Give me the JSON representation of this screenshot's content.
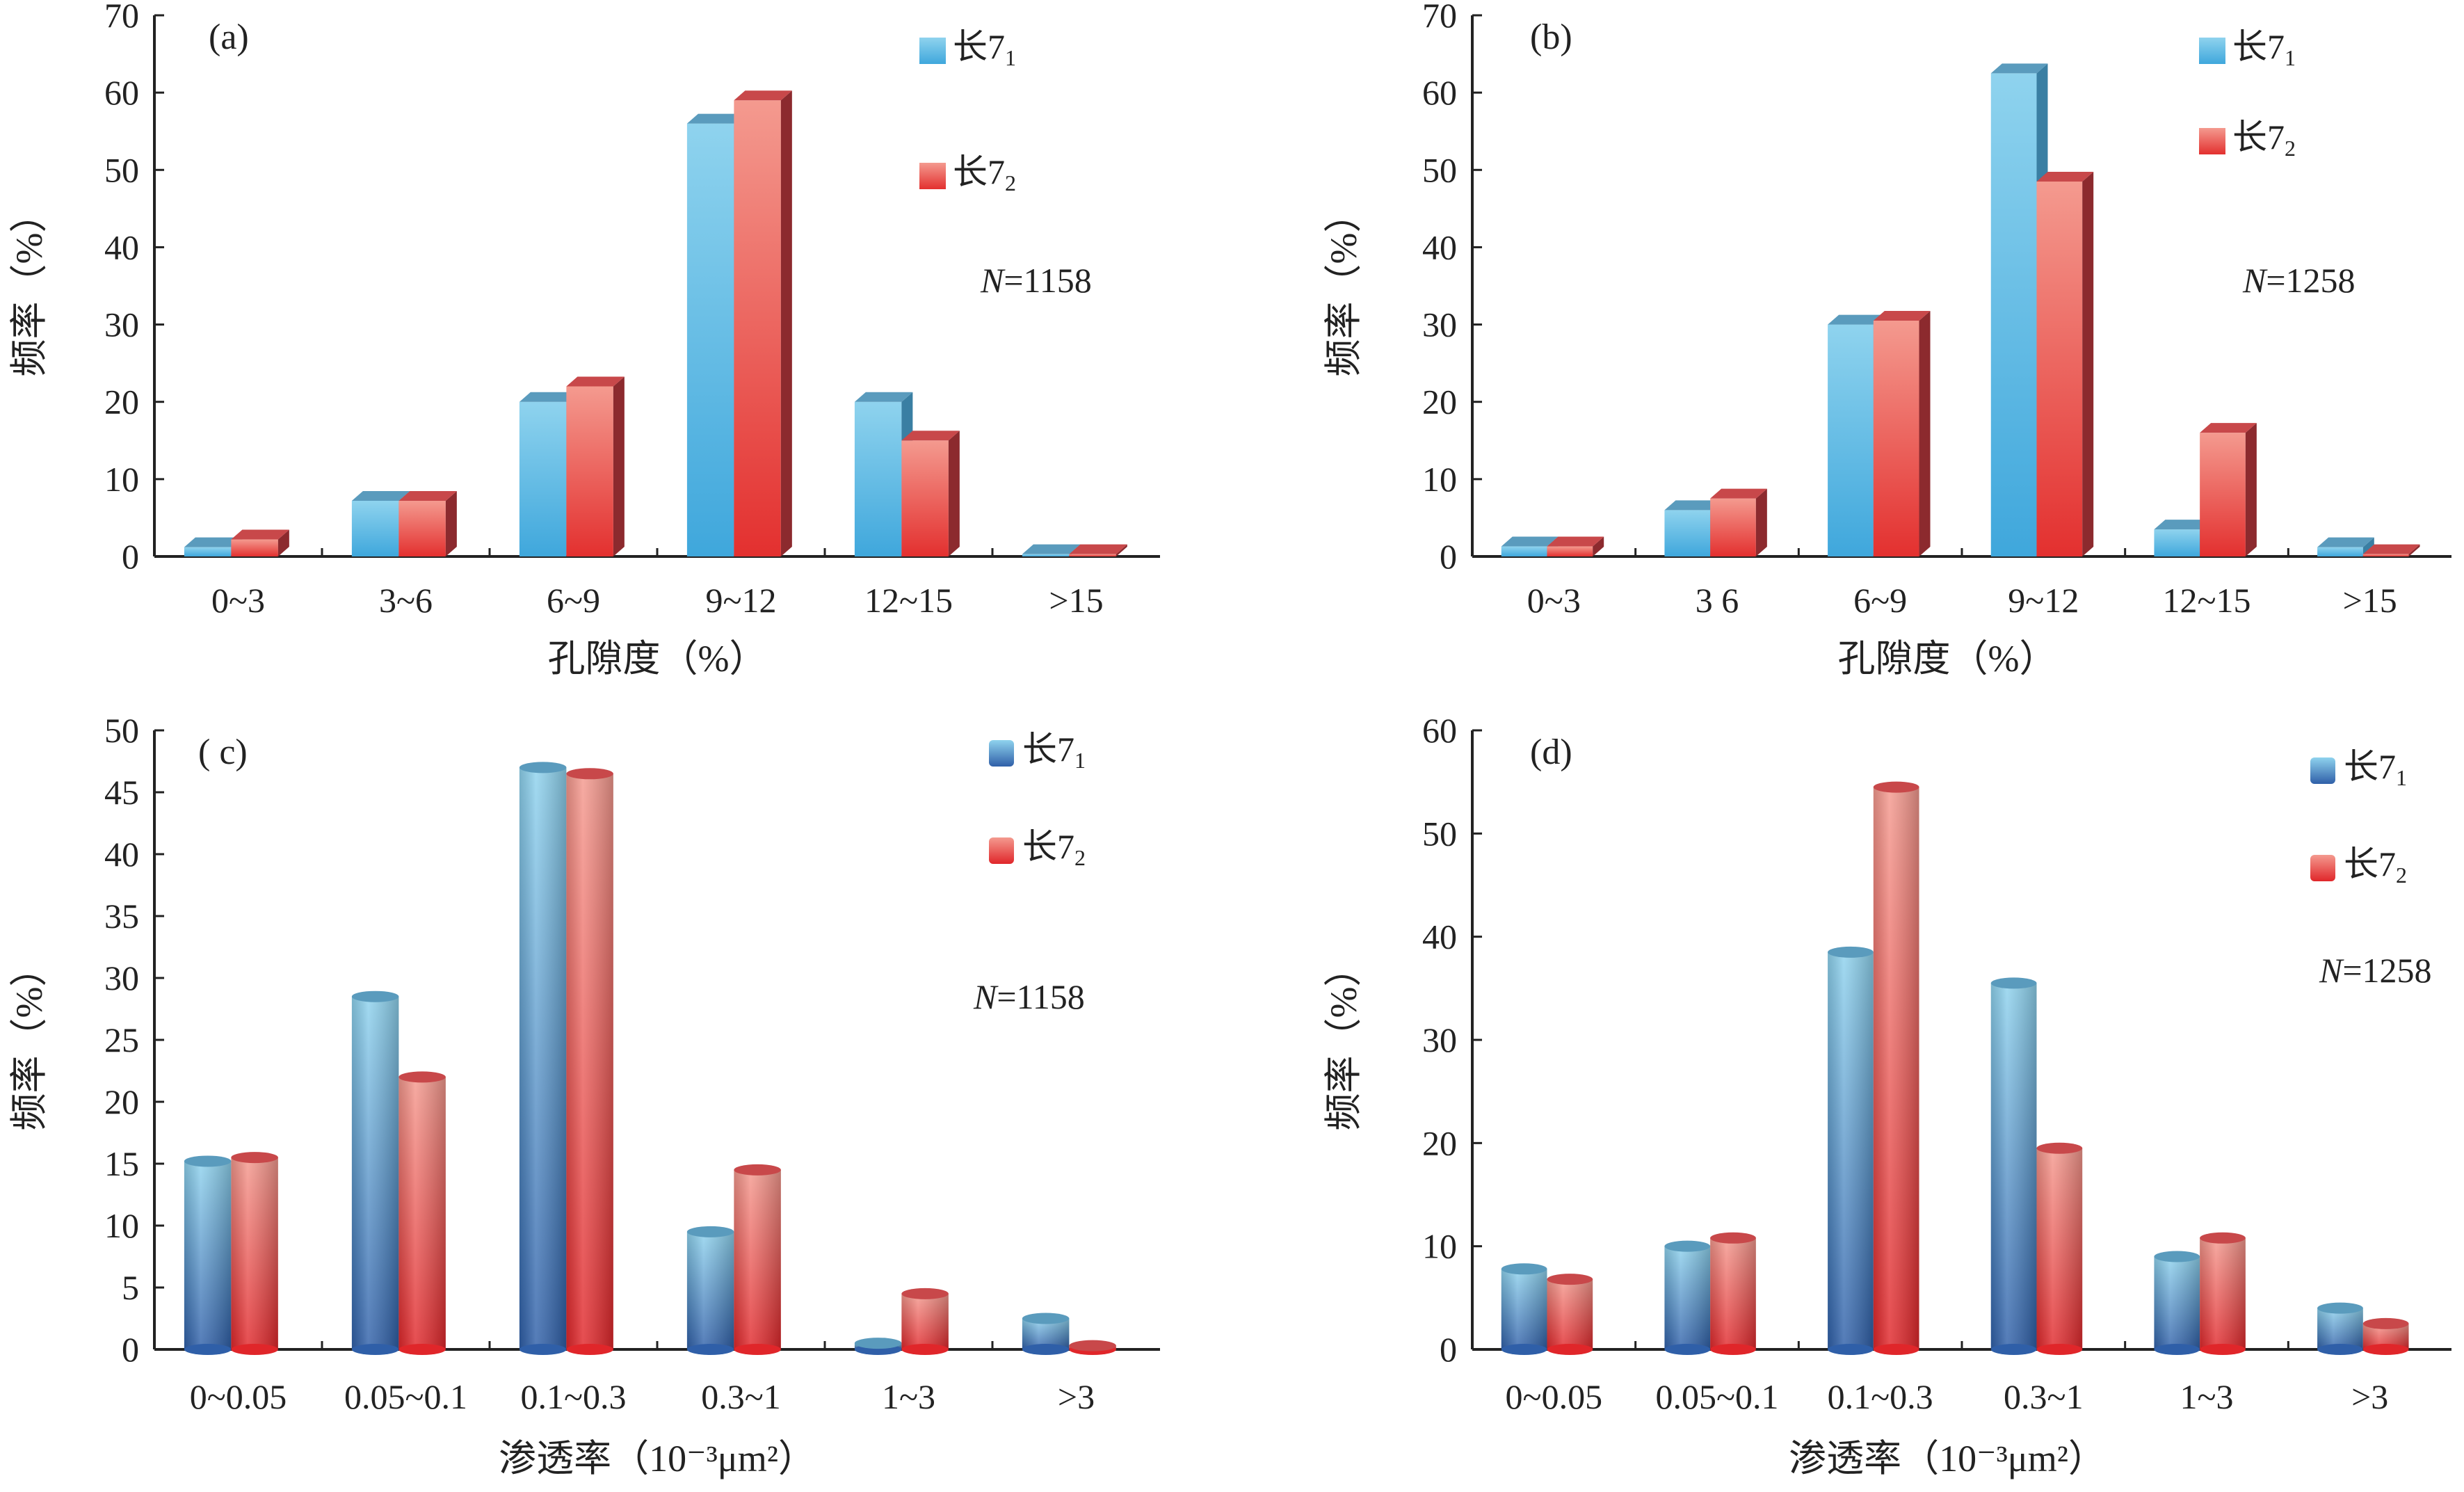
{
  "series_names": [
    "长7",
    "长7"
  ],
  "series_subscripts": [
    "1",
    "2"
  ],
  "chart_data": [
    {
      "type": "bar",
      "panel_label": "(a)",
      "xlabel": "孔隙度（%）",
      "ylabel": "频率（%）",
      "ylim": [
        0,
        70
      ],
      "yticks": [
        "0",
        "10",
        "20",
        "30",
        "40",
        "50",
        "60",
        "70"
      ],
      "categories": [
        "0~3",
        "3~6",
        "6~9",
        "9~12",
        "12~15",
        ">15"
      ],
      "n_italic": "N",
      "n_value": "=1158",
      "series": [
        {
          "values": [
            1.2,
            7.2,
            20.0,
            56.0,
            20.0,
            0.3
          ]
        },
        {
          "values": [
            2.2,
            7.2,
            22.0,
            59.0,
            15.0,
            0.3
          ]
        }
      ]
    },
    {
      "type": "bar",
      "panel_label": "(b)",
      "xlabel": "孔隙度（%）",
      "ylabel": "频率（%）",
      "ylim": [
        0,
        70
      ],
      "yticks": [
        "0",
        "10",
        "20",
        "30",
        "40",
        "50",
        "60",
        "70"
      ],
      "categories": [
        "0~3",
        "3  6",
        "6~9",
        "9~12",
        "12~15",
        ">15"
      ],
      "n_italic": "N",
      "n_value": "=1258",
      "series": [
        {
          "values": [
            1.3,
            6.0,
            30.0,
            62.5,
            3.5,
            1.2
          ]
        },
        {
          "values": [
            1.3,
            7.5,
            30.5,
            48.5,
            16.0,
            0.3
          ]
        }
      ]
    },
    {
      "type": "bar",
      "panel_label": "( c)",
      "xlabel": "渗透率（10⁻³μm²）",
      "ylabel": "频率（%）",
      "ylim": [
        0,
        50
      ],
      "yticks": [
        "0",
        "5",
        "10",
        "15",
        "20",
        "25",
        "30",
        "35",
        "40",
        "45",
        "50"
      ],
      "categories": [
        "0~0.05",
        "0.05~0.1",
        "0.1~0.3",
        "0.3~1",
        "1~3",
        ">3"
      ],
      "n_italic": "N",
      "n_value": "=1158",
      "series": [
        {
          "values": [
            15.2,
            28.5,
            47.0,
            9.5,
            0.5,
            2.5
          ]
        },
        {
          "values": [
            15.5,
            22.0,
            46.5,
            14.5,
            4.5,
            0.3
          ]
        }
      ]
    },
    {
      "type": "bar",
      "panel_label": "(d)",
      "xlabel": "渗透率（10⁻³μm²）",
      "ylabel": "频率（%）",
      "ylim": [
        0,
        60
      ],
      "yticks": [
        "0",
        "10",
        "20",
        "30",
        "40",
        "50",
        "60"
      ],
      "categories": [
        "0~0.05",
        "0.05~0.1",
        "0.1~0.3",
        "0.3~1",
        "1~3",
        ">3"
      ],
      "n_italic": "N",
      "n_value": "=1258",
      "series": [
        {
          "values": [
            7.8,
            10.0,
            38.5,
            35.5,
            9.0,
            4.0
          ]
        },
        {
          "values": [
            6.8,
            10.8,
            54.5,
            19.5,
            10.8,
            2.5
          ]
        }
      ]
    }
  ],
  "colors": {
    "blue_light": "#8fd3ee",
    "blue_mid": "#4bb2e0",
    "blue_dark": "#2f5fa8",
    "blue_top": "#5a9bbd",
    "red_light": "#f49a8f",
    "red_mid": "#ee5a50",
    "red_dark": "#e0262a",
    "red_top": "#c8484a",
    "red_side": "#8c2a2e",
    "blue_side": "#3a7fa3",
    "axis": "#222222"
  }
}
